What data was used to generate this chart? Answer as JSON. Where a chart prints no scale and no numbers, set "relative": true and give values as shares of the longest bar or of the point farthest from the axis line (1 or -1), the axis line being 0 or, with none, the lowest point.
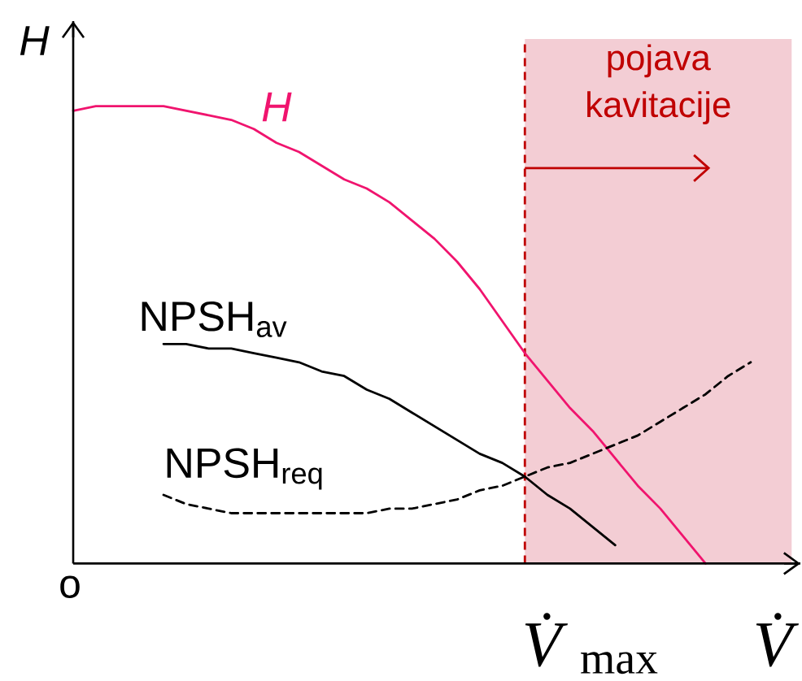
{
  "chart_data": {
    "type": "line",
    "relative": true,
    "xlabel": "V̇",
    "ylabel": "H",
    "line_style": "solid",
    "categories": [
      null,
      null,
      null,
      null,
      null,
      null,
      null,
      null,
      null,
      null,
      null,
      null,
      null,
      null,
      null,
      null,
      null,
      null,
      null,
      null,
      null,
      null,
      null,
      null,
      null,
      null,
      null,
      null,
      null,
      null,
      null,
      null,
      null
    ],
    "series": [
      {
        "name": "*H*",
        "color": "#f0146e",
        "values": [
          0.99,
          1,
          1,
          1,
          1,
          0.99,
          0.98,
          0.97,
          0.95,
          0.92,
          0.9,
          0.87,
          0.84,
          0.82,
          0.79,
          0.75,
          0.71,
          0.66,
          0.6,
          0.53,
          0.46,
          0.4,
          0.34,
          0.29,
          0.23,
          0.17,
          0.12,
          0.06,
          0,
          null,
          null,
          null,
          null
        ]
      },
      {
        "name": "NPSH$_{av}$",
        "color": "#000000",
        "values": [
          null,
          null,
          null,
          null,
          0.48,
          0.48,
          0.47,
          0.47,
          0.46,
          0.45,
          0.44,
          0.42,
          0.41,
          0.38,
          0.36,
          0.33,
          0.3,
          0.27,
          0.24,
          0.22,
          0.19,
          0.15,
          0.12,
          0.08,
          0.04,
          null,
          null,
          null,
          null,
          null,
          null,
          null,
          null
        ]
      },
      {
        "name": "NPSH$_{req}$",
        "color": "#000000",
        "line_style": "dashed",
        "values": [
          null,
          null,
          null,
          null,
          0.15,
          0.13,
          0.12,
          0.11,
          0.11,
          0.11,
          0.11,
          0.11,
          0.11,
          0.11,
          0.12,
          0.12,
          0.13,
          0.14,
          0.16,
          0.17,
          0.19,
          0.21,
          0.22,
          0.24,
          0.26,
          0.28,
          0.31,
          0.34,
          0.37,
          0.41,
          0.44,
          null,
          null
        ]
      }
    ],
    "annotations": [
      "o",
      "*V̇*$_{max}$",
      "pojava kavitacije"
    ]
  }
}
